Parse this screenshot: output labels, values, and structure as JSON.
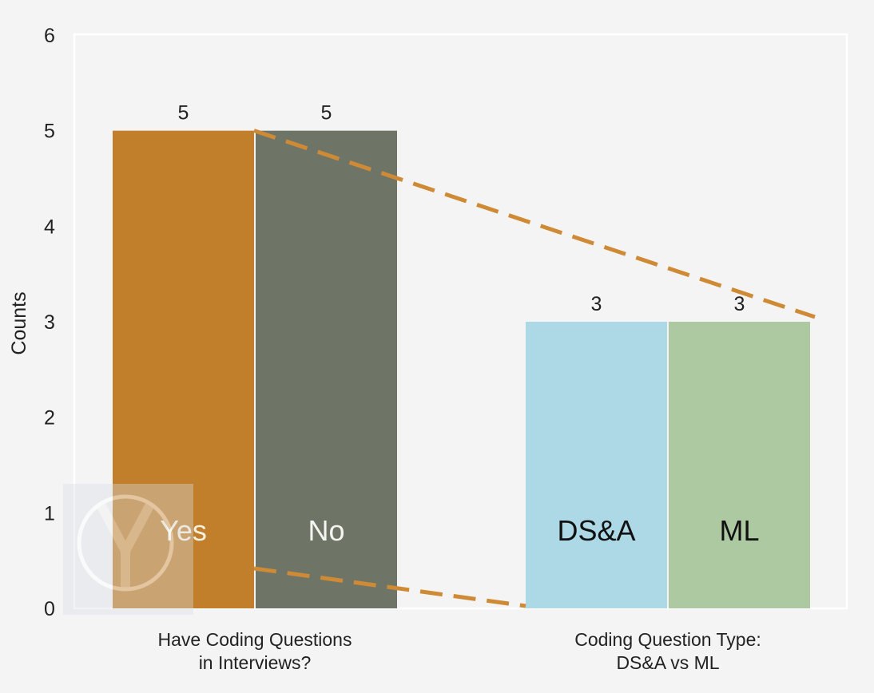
{
  "chart_data": {
    "type": "bar",
    "title": "",
    "ylabel": "Counts",
    "ylim": [
      0,
      6
    ],
    "yticks": [
      "0",
      "1",
      "2",
      "3",
      "4",
      "5",
      "6"
    ],
    "grid": false,
    "groups": [
      {
        "label_line1": "Have Coding Questions",
        "label_line2": "in Interviews?",
        "bars": [
          {
            "name": "Yes",
            "value": 5,
            "color": "#c17f2b",
            "text_color": "#f4f0e0"
          },
          {
            "name": "No",
            "value": 5,
            "color": "#6f7566",
            "text_color": "#f4f4f0"
          }
        ]
      },
      {
        "label_line1": "Coding Question Type:",
        "label_line2": "DS&A vs ML",
        "bars": [
          {
            "name": "DS&A",
            "value": 3,
            "color": "#add8e6",
            "text_color": "#111111"
          },
          {
            "name": "ML",
            "value": 3,
            "color": "#adc9a1",
            "text_color": "#111111"
          }
        ]
      }
    ],
    "connector_color": "#cf8a35"
  }
}
